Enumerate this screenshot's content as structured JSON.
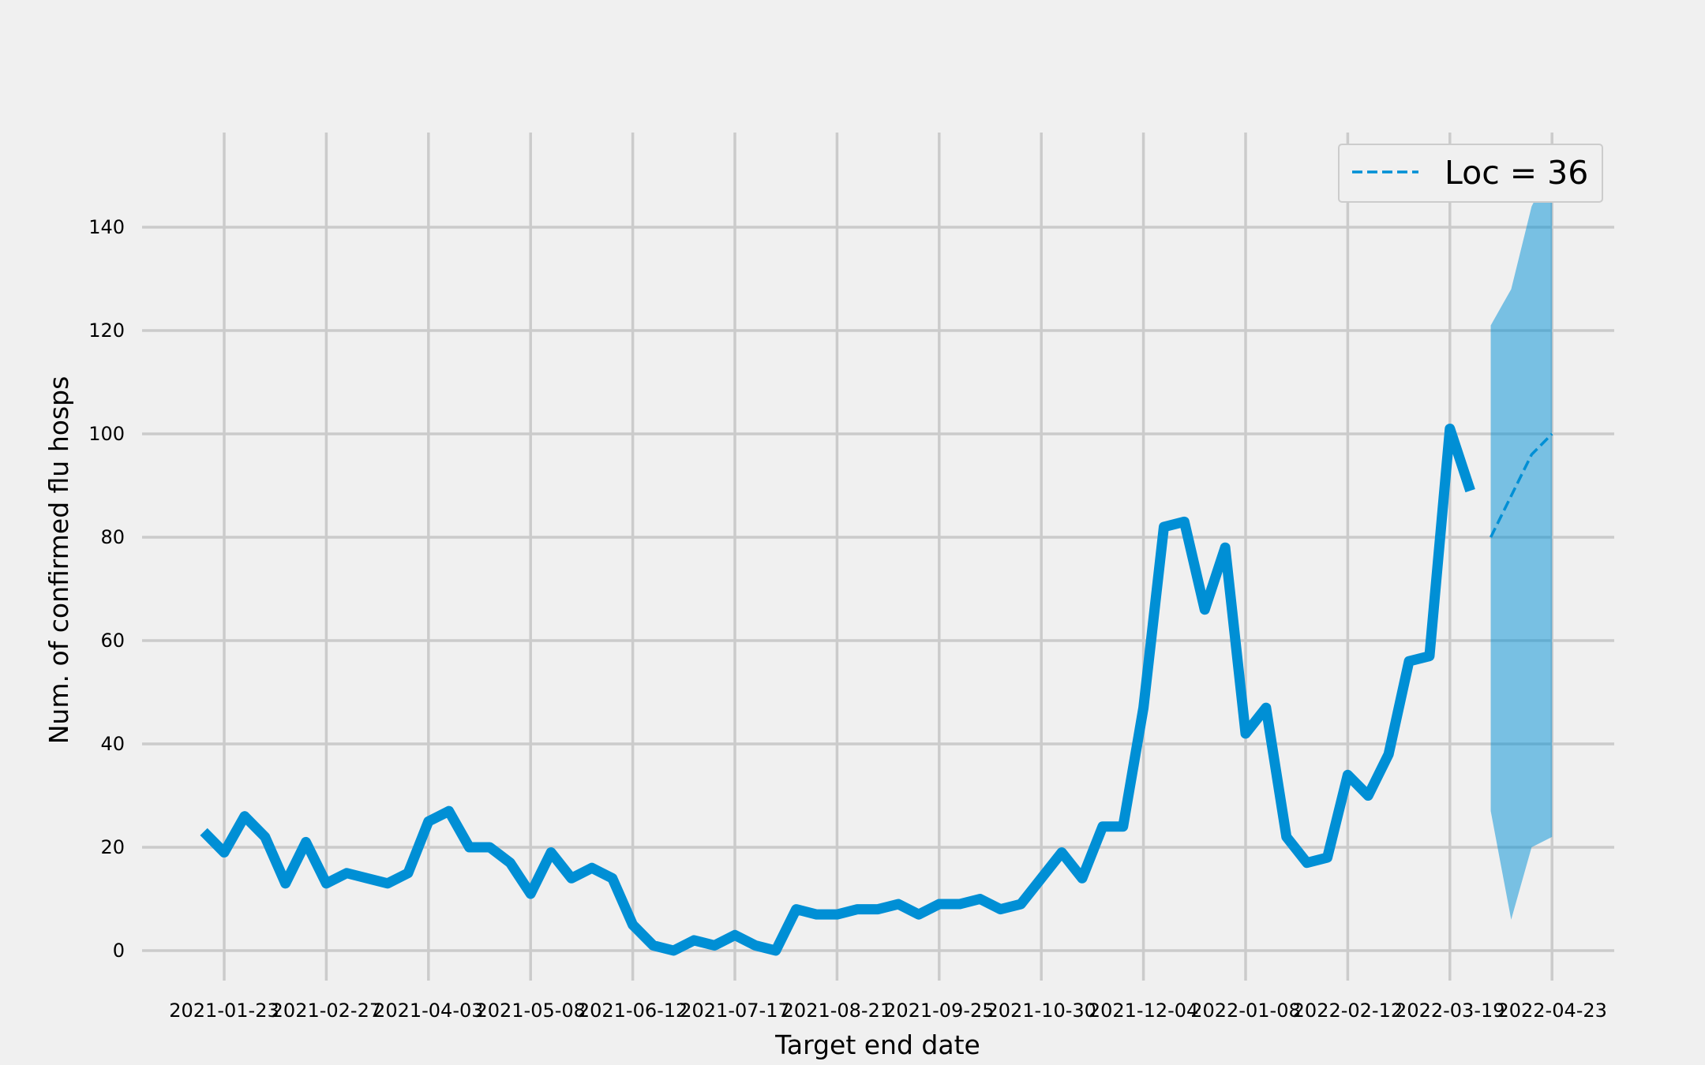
{
  "chart_data": {
    "type": "line",
    "xlabel": "Target end date",
    "ylabel": "Num. of confirmed flu hosps",
    "x_ticks": [
      "2021-01-23",
      "2021-02-27",
      "2021-04-03",
      "2021-05-08",
      "2021-06-12",
      "2021-07-17",
      "2021-08-21",
      "2021-09-25",
      "2021-10-30",
      "2021-12-04",
      "2022-01-08",
      "2022-02-12",
      "2022-03-19",
      "2022-04-23"
    ],
    "y_ticks": [
      0,
      20,
      40,
      60,
      80,
      100,
      120,
      140
    ],
    "ylim": [
      -6,
      158
    ],
    "grid": true,
    "legend": {
      "position": "top-right",
      "entries": [
        "Loc = 36"
      ]
    },
    "series": [
      {
        "role": "observed",
        "color": "#008fd5",
        "x": [
          "2021-01-16",
          "2021-01-23",
          "2021-01-30",
          "2021-02-06",
          "2021-02-13",
          "2021-02-20",
          "2021-02-27",
          "2021-03-06",
          "2021-03-13",
          "2021-03-20",
          "2021-03-27",
          "2021-04-03",
          "2021-04-10",
          "2021-04-17",
          "2021-04-24",
          "2021-05-01",
          "2021-05-08",
          "2021-05-15",
          "2021-05-22",
          "2021-05-29",
          "2021-06-05",
          "2021-06-12",
          "2021-06-19",
          "2021-06-26",
          "2021-07-03",
          "2021-07-10",
          "2021-07-17",
          "2021-07-24",
          "2021-07-31",
          "2021-08-07",
          "2021-08-14",
          "2021-08-21",
          "2021-08-28",
          "2021-09-04",
          "2021-09-11",
          "2021-09-18",
          "2021-09-25",
          "2021-10-02",
          "2021-10-09",
          "2021-10-16",
          "2021-10-23",
          "2021-10-30",
          "2021-11-06",
          "2021-11-13",
          "2021-11-20",
          "2021-11-27",
          "2021-12-04",
          "2021-12-11",
          "2021-12-18",
          "2021-12-25",
          "2022-01-01",
          "2022-01-08",
          "2022-01-15",
          "2022-01-22",
          "2022-01-29",
          "2022-02-05",
          "2022-02-12",
          "2022-02-19",
          "2022-02-26",
          "2022-03-05",
          "2022-03-12",
          "2022-03-19",
          "2022-03-26"
        ],
        "y": [
          23,
          19,
          26,
          22,
          13,
          21,
          13,
          15,
          14,
          13,
          15,
          25,
          27,
          20,
          20,
          17,
          11,
          19,
          14,
          16,
          14,
          5,
          1,
          0,
          2,
          1,
          3,
          1,
          0,
          8,
          7,
          7,
          8,
          8,
          9,
          7,
          9,
          9,
          10,
          8,
          9,
          14,
          19,
          14,
          24,
          24,
          47,
          82,
          83,
          66,
          78,
          42,
          47,
          22,
          17,
          18,
          34,
          30,
          38,
          56,
          57,
          101,
          89
        ]
      },
      {
        "role": "forecast",
        "name": "Loc = 36",
        "color": "#008fd5",
        "style": "dashed",
        "x": [
          "2022-04-02",
          "2022-04-09",
          "2022-04-16",
          "2022-04-23"
        ],
        "y": [
          80,
          88,
          96,
          100
        ]
      },
      {
        "role": "interval",
        "color": "#008fd5",
        "opacity": 0.5,
        "x": [
          "2022-04-02",
          "2022-04-09",
          "2022-04-16",
          "2022-04-23"
        ],
        "lower": [
          27,
          6,
          20,
          22
        ],
        "upper": [
          121,
          128,
          144,
          152
        ]
      }
    ]
  }
}
